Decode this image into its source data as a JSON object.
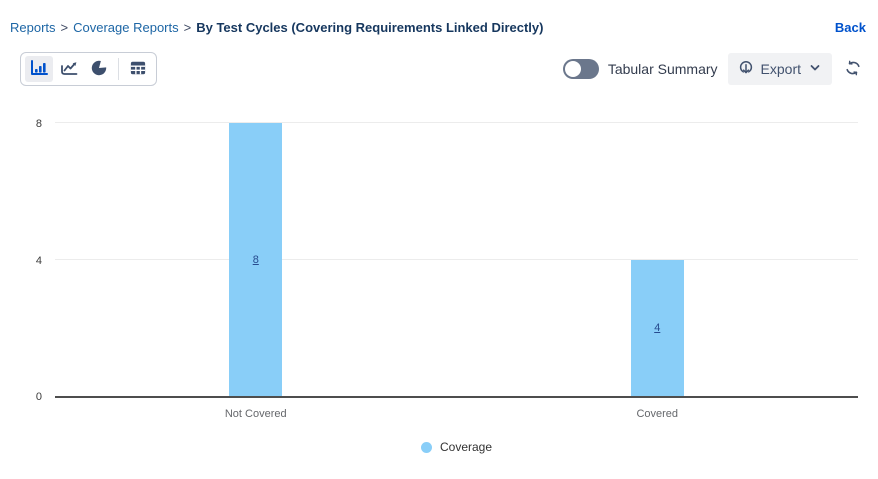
{
  "breadcrumb": {
    "items": [
      "Reports",
      "Coverage Reports"
    ],
    "separator": ">",
    "current": "By Test Cycles (Covering Requirements Linked Directly)"
  },
  "header": {
    "back_label": "Back"
  },
  "toolbar": {
    "chart_types": [
      {
        "id": "bar-chart",
        "selected": true
      },
      {
        "id": "line-chart",
        "selected": false
      },
      {
        "id": "pie-chart",
        "selected": false
      },
      {
        "id": "table-view",
        "selected": false
      }
    ],
    "tabular_summary_label": "Tabular Summary",
    "tabular_summary_on": false,
    "export_label": "Export"
  },
  "chart_data": {
    "type": "bar",
    "categories": [
      "Not Covered",
      "Covered"
    ],
    "values": [
      8,
      4
    ],
    "series": [
      {
        "name": "Coverage",
        "values": [
          8,
          4
        ]
      }
    ],
    "bar_labels": [
      "8",
      "4"
    ],
    "title": "",
    "xlabel": "",
    "ylabel": "",
    "ylim": [
      0,
      8
    ],
    "yticks": [
      0,
      4,
      8
    ],
    "grid": true,
    "bar_color": "#89CEF8",
    "legend_position": "bottom",
    "legend_label": "Coverage"
  },
  "colors": {
    "accent_blue": "#0052CC",
    "icon_navy": "#3D4F6D",
    "bar_fill": "#89CEF8",
    "toggle_off": "#6B778C",
    "axis_line": "#4E4E4E"
  }
}
